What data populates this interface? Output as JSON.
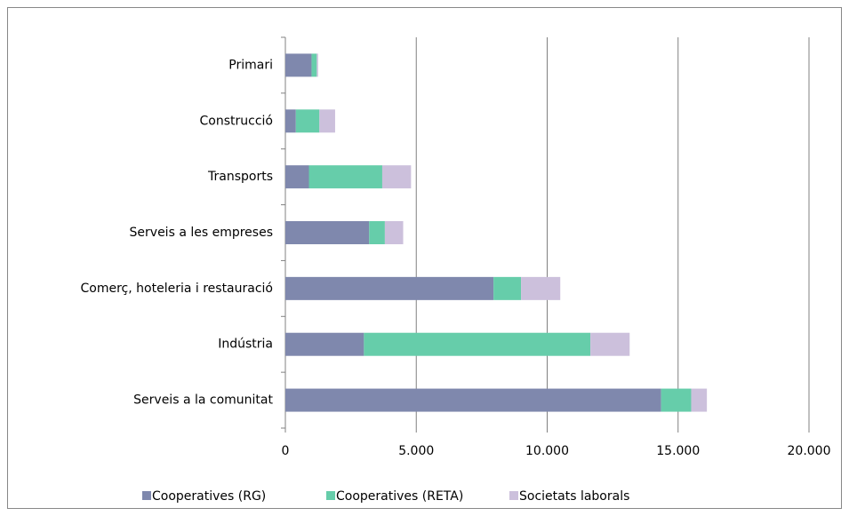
{
  "chart_data": {
    "type": "stacked-barh",
    "categories": [
      "Primari",
      "Construcció",
      "Transports",
      "Serveis a les empreses",
      "Comerç, hoteleria i restauració",
      "Indústria",
      "Serveis a la comunitat"
    ],
    "series": [
      {
        "name": "Cooperatives (RG)",
        "color": "#7f88ad",
        "values": [
          1000,
          400,
          900,
          3200,
          7950,
          3000,
          14350
        ]
      },
      {
        "name": "Cooperatives (RETA)",
        "color": "#66cdaa",
        "values": [
          200,
          900,
          2800,
          600,
          1050,
          8650,
          1150
        ]
      },
      {
        "name": "Societats laborals",
        "color": "#ccc0dc",
        "values": [
          50,
          600,
          1100,
          700,
          1500,
          1500,
          600
        ]
      }
    ],
    "xlim": [
      0,
      20000
    ],
    "xticks": [
      0,
      {
        "value": 5000,
        "label": "5.000"
      },
      {
        "value": 10000,
        "label": "10.000"
      },
      {
        "value": 15000,
        "label": "15.000"
      },
      {
        "value": 20000,
        "label": "20.000"
      }
    ],
    "grid": true,
    "legend": "bottom"
  }
}
